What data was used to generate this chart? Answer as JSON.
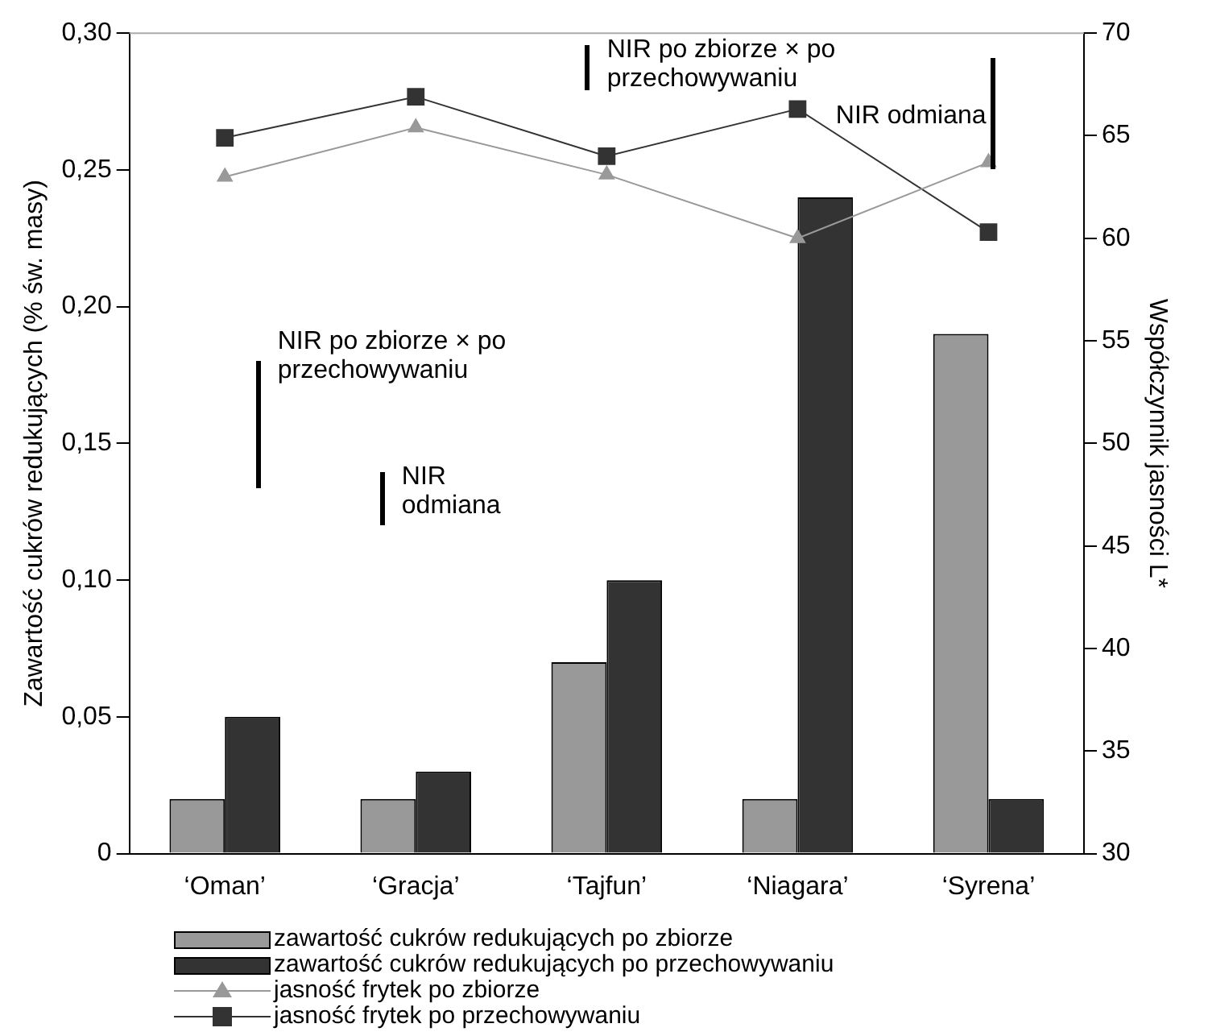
{
  "chart_data": {
    "type": "bar",
    "ylabel": "Zawartość cukrów redukujących (% św. masy)",
    "y2label": "Współczynnik jasności L*",
    "categories": [
      "‘Oman’",
      "‘Gracja’",
      "‘Tajfun’",
      "‘Niagara’",
      "‘Syrena’"
    ],
    "series": [
      {
        "name": "zawartość cukrów redukujących po zbiorze",
        "color": "#999999",
        "values": [
          0.02,
          0.02,
          0.07,
          0.02,
          0.19
        ]
      },
      {
        "name": "zawartość cukrów redukujących po przechowywaniu",
        "color": "#333333",
        "values": [
          0.05,
          0.03,
          0.1,
          0.24,
          0.02
        ]
      },
      {
        "name": "jasność frytek po zbiorze",
        "type": "line",
        "axis": "y2",
        "marker": "triangle",
        "color": "#999999",
        "values": [
          63.0,
          65.4,
          63.1,
          60.0,
          63.7
        ]
      },
      {
        "name": "jasność frytek po przechowywaniu",
        "type": "line",
        "axis": "y2",
        "marker": "square",
        "color": "#333333",
        "values": [
          64.9,
          66.9,
          64.0,
          66.3,
          60.3
        ]
      }
    ],
    "ylim": [
      0,
      0.3
    ],
    "yticks": [
      0,
      {
        "value": 0.05,
        "label": "0,05"
      },
      {
        "value": 0.1,
        "label": "0,10"
      },
      {
        "value": 0.15,
        "label": "0,15"
      },
      {
        "value": 0.2,
        "label": "0,20"
      },
      {
        "value": 0.25,
        "label": "0,25"
      },
      {
        "value": 0.3,
        "label": "0,30"
      }
    ],
    "y2lim": [
      30,
      70
    ],
    "y2ticks": [
      30,
      35,
      40,
      45,
      50,
      55,
      60,
      65,
      70
    ],
    "grid": false,
    "legend": "bottom",
    "annotations": [
      "NIR po zbiorze × po przechowywaniu",
      "NIR odmiana",
      "NIR po zbiorze × po przechowywaniu",
      "NIR odmiana"
    ]
  }
}
